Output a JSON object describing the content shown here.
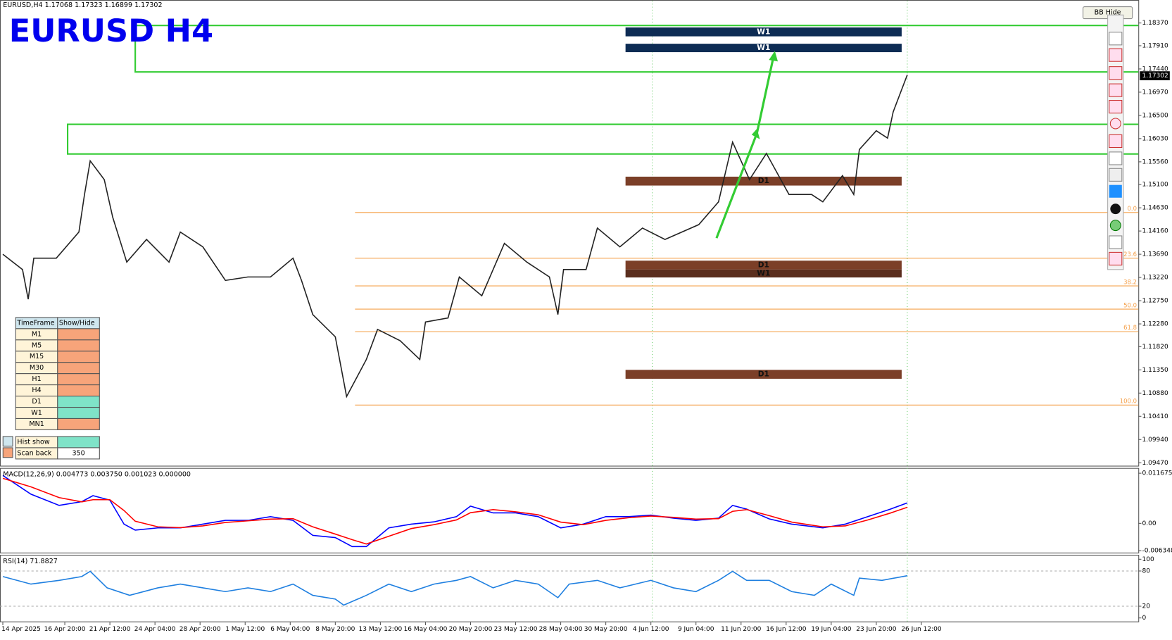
{
  "header": {
    "info": "EURUSD,H4  1.17068 1.17323 1.16899 1.17302",
    "symbol_title": "EURUSD  H4",
    "button": "BB Hide"
  },
  "chart_data": [
    {
      "type": "line",
      "color": "#222222",
      "x": [
        0,
        7,
        9,
        11,
        19,
        27,
        29,
        31,
        36,
        39,
        44,
        51,
        59,
        63,
        71,
        79,
        87,
        95,
        103,
        106,
        110,
        118,
        122,
        129,
        133,
        141,
        148,
        150,
        158,
        162,
        170,
        178,
        186,
        194,
        197,
        199,
        207,
        211,
        219,
        227,
        235,
        247,
        254,
        259,
        265,
        271,
        279,
        287,
        291,
        298,
        302,
        304,
        310,
        314,
        316,
        319,
        321
      ],
      "values": [
        1.1369,
        1.1338,
        1.1278,
        1.1361,
        1.1361,
        1.1414,
        1.149,
        1.1558,
        1.152,
        1.1444,
        1.1353,
        1.1399,
        1.1353,
        1.1414,
        1.1384,
        1.1316,
        1.1323,
        1.1323,
        1.1361,
        1.1316,
        1.1247,
        1.1202,
        1.1081,
        1.1156,
        1.1217,
        1.1194,
        1.1156,
        1.1232,
        1.124,
        1.1323,
        1.1285,
        1.1391,
        1.1353,
        1.1323,
        1.1247,
        1.1338,
        1.1338,
        1.1422,
        1.1384,
        1.1422,
        1.1399,
        1.1429,
        1.1475,
        1.1596,
        1.152,
        1.1573,
        1.149,
        1.149,
        1.1475,
        1.1528,
        1.149,
        1.1581,
        1.1619,
        1.1604,
        1.1657,
        1.1702,
        1.1732
      ],
      "xlim": [
        -1,
        403
      ],
      "ylim": [
        1.0941,
        1.1879
      ],
      "xticks": [
        {
          "value": 0,
          "label": "14 Apr 2025"
        },
        {
          "value": 22,
          "label": "16 Apr 20:00"
        },
        {
          "value": 38,
          "label": "21 Apr 12:00"
        },
        {
          "value": 54,
          "label": "24 Apr 04:00"
        },
        {
          "value": 70,
          "label": "28 Apr 20:00"
        },
        {
          "value": 86,
          "label": "1 May 12:00"
        },
        {
          "value": 102,
          "label": "6 May 04:00"
        },
        {
          "value": 118,
          "label": "8 May 20:00"
        },
        {
          "value": 134,
          "label": "13 May 12:00"
        },
        {
          "value": 150,
          "label": "16 May 04:00"
        },
        {
          "value": 166,
          "label": "20 May 20:00"
        },
        {
          "value": 182,
          "label": "23 May 12:00"
        },
        {
          "value": 198,
          "label": "28 May 04:00"
        },
        {
          "value": 214,
          "label": "30 May 20:00"
        },
        {
          "value": 230,
          "label": "4 Jun 12:00"
        },
        {
          "value": 246,
          "label": "9 Jun 04:00"
        },
        {
          "value": 262,
          "label": "11 Jun 20:00"
        },
        {
          "value": 278,
          "label": "16 Jun 12:00"
        },
        {
          "value": 294,
          "label": "19 Jun 04:00"
        },
        {
          "value": 310,
          "label": "23 Jun 20:00"
        },
        {
          "value": 326,
          "label": "26 Jun 12:00"
        }
      ],
      "yticks": [
        {
          "value": 1.1837,
          "label": "1.18370"
        },
        {
          "value": 1.1791,
          "label": "1.17910"
        },
        {
          "value": 1.1744,
          "label": "1.17440"
        },
        {
          "value": 1.1697,
          "label": "1.16970"
        },
        {
          "value": 1.165,
          "label": "1.16500"
        },
        {
          "value": 1.1603,
          "label": "1.16030"
        },
        {
          "value": 1.1556,
          "label": "1.15560"
        },
        {
          "value": 1.151,
          "label": "1.15100"
        },
        {
          "value": 1.1463,
          "label": "1.14630"
        },
        {
          "value": 1.1416,
          "label": "1.14160"
        },
        {
          "value": 1.1369,
          "label": "1.13690"
        },
        {
          "value": 1.1322,
          "label": "1.13220"
        },
        {
          "value": 1.1275,
          "label": "1.12750"
        },
        {
          "value": 1.1228,
          "label": "1.12280"
        },
        {
          "value": 1.1182,
          "label": "1.11820"
        },
        {
          "value": 1.1135,
          "label": "1.11350"
        },
        {
          "value": 1.1088,
          "label": "1.10880"
        },
        {
          "value": 1.1041,
          "label": "1.10410"
        },
        {
          "value": 1.0994,
          "label": "1.09940"
        },
        {
          "value": 1.0947,
          "label": "1.09470"
        }
      ],
      "current_price": {
        "value": 1.17302,
        "label": "1.17302"
      },
      "vlines": [
        230.5,
        321
      ],
      "zones": [
        {
          "label": "W1",
          "top": 1.1828,
          "bottom": 1.181,
          "x0": 221,
          "x1": 319,
          "color": "#0d2c54"
        },
        {
          "label": "W1",
          "top": 1.1795,
          "bottom": 1.1778,
          "x0": 221,
          "x1": 319,
          "color": "#0d2c54"
        },
        {
          "label": "D1",
          "top": 1.1526,
          "bottom": 1.1508,
          "x0": 221,
          "x1": 319,
          "color": "#7b3f28"
        },
        {
          "label": "D1",
          "top": 1.1356,
          "bottom": 1.1338,
          "x0": 221,
          "x1": 319,
          "color": "#7b3f28"
        },
        {
          "label": "W1",
          "top": 1.1338,
          "bottom": 1.1322,
          "x0": 221,
          "x1": 319,
          "color": "#5a2e1e"
        },
        {
          "label": "D1",
          "top": 1.1135,
          "bottom": 1.1117,
          "x0": 221,
          "x1": 319,
          "color": "#7b3f28"
        }
      ],
      "levels": [
        {
          "top": 1.1832,
          "bottom": 1.1738,
          "x0": 47,
          "color": "#33cc33"
        },
        {
          "top": 1.1632,
          "bottom": 1.1572,
          "x0": 23,
          "color": "#33cc33"
        }
      ],
      "fib": {
        "x0": 125,
        "color": "#f5a04a",
        "levels": [
          {
            "label": "0.0",
            "price": 1.14535
          },
          {
            "label": "23.6",
            "price": 1.1361
          },
          {
            "label": "38.2",
            "price": 1.13049
          },
          {
            "label": "50.0",
            "price": 1.12579
          },
          {
            "label": "61.8",
            "price": 1.12124
          },
          {
            "label": "100.0",
            "price": 1.10638
          }
        ]
      }
    },
    {
      "type": "line",
      "title": "MACD(12,26,9) 0.004773 0.003750 0.001023 0.000000",
      "x": [
        0,
        10,
        20,
        28,
        32,
        38,
        43,
        47,
        55,
        63,
        71,
        79,
        87,
        95,
        103,
        110,
        118,
        124,
        129,
        137,
        145,
        153,
        161,
        166,
        174,
        182,
        190,
        198,
        206,
        214,
        222,
        230,
        238,
        246,
        254,
        259,
        264,
        272,
        280,
        291,
        299,
        307,
        315,
        321
      ],
      "series": [
        {
          "color": "#0000ff",
          "values": [
            0.01116,
            0.0068,
            0.00418,
            0.00505,
            0.00645,
            0.0054,
            -0.00017,
            -0.00157,
            -0.00105,
            -0.00105,
            -0.00017,
            0.0007,
            0.0007,
            0.00157,
            0.0007,
            -0.00279,
            -0.00331,
            -0.0054,
            -0.0054,
            -0.00105,
            -0.00017,
            0.00035,
            0.00157,
            0.00401,
            0.00244,
            0.00244,
            0.00157,
            -0.00105,
            -0.00017,
            0.00157,
            0.00157,
            0.00192,
            0.00122,
            0.0007,
            0.00122,
            0.00418,
            0.00331,
            0.00105,
            -0.00017,
            -0.00105,
            -0.00017,
            0.00157,
            0.00331,
            0.00477
          ]
        },
        {
          "color": "#ff0000",
          "values": [
            0.0105,
            0.0085,
            0.006,
            0.005,
            0.0055,
            0.0055,
            0.003,
            0.0005,
            -0.0008,
            -0.001,
            -0.0006,
            0.0002,
            0.0006,
            0.001,
            0.0011,
            -0.0008,
            -0.0025,
            -0.0038,
            -0.0048,
            -0.003,
            -0.0012,
            -0.0003,
            0.0008,
            0.0025,
            0.0032,
            0.0027,
            0.002,
            0.0003,
            -0.0003,
            0.0007,
            0.0013,
            0.0017,
            0.0014,
            0.001,
            0.0011,
            0.0028,
            0.0032,
            0.0018,
            0.0003,
            -0.0008,
            -0.0006,
            0.0008,
            0.0024,
            0.00375
          ]
        }
      ],
      "xlim": [
        -1,
        403
      ],
      "ylim": [
        -0.0068,
        0.01255
      ],
      "yticks": [
        0.011675,
        {
          "value": 0,
          "label": "0.00"
        },
        -0.006348
      ]
    },
    {
      "type": "line",
      "title": "RSI(14) 71.8827",
      "color": "#1e7fe0",
      "x": [
        0,
        10,
        20,
        28,
        31,
        37,
        45,
        55,
        63,
        71,
        79,
        87,
        95,
        103,
        110,
        118,
        121,
        129,
        137,
        145,
        153,
        161,
        166,
        174,
        182,
        190,
        197,
        201,
        211,
        219,
        230,
        238,
        246,
        254,
        259,
        264,
        272,
        280,
        288,
        294,
        302,
        304,
        312,
        321
      ],
      "values": [
        70.5,
        57.7,
        64.1,
        70.5,
        79.5,
        51.3,
        38.5,
        51.3,
        57.7,
        51.3,
        44.9,
        51.3,
        44.9,
        57.7,
        38.5,
        32.1,
        21.8,
        38.5,
        57.7,
        44.9,
        57.7,
        64.1,
        70.5,
        51.3,
        64.1,
        57.7,
        34.6,
        57.7,
        64.1,
        51.3,
        64.1,
        51.3,
        44.9,
        64.1,
        79.5,
        64.1,
        64.1,
        44.9,
        38.5,
        57.7,
        38.5,
        67.9,
        64.1,
        71.9
      ],
      "xlim": [
        -1,
        403
      ],
      "ylim": [
        -6,
        105
      ],
      "yticks": [
        0,
        20,
        80,
        100
      ],
      "levels": [
        20,
        80
      ]
    }
  ],
  "timeframe_table": {
    "header": [
      "TimeFrame",
      "Show/Hide"
    ],
    "rows": [
      {
        "label": "M1",
        "color": "#f7a47a"
      },
      {
        "label": "M5",
        "color": "#f7a47a"
      },
      {
        "label": "M15",
        "color": "#f7a47a"
      },
      {
        "label": "M30",
        "color": "#f7a47a"
      },
      {
        "label": "H1",
        "color": "#f7a47a"
      },
      {
        "label": "H4",
        "color": "#f7a47a"
      },
      {
        "label": "D1",
        "color": "#7fe3c8"
      },
      {
        "label": "W1",
        "color": "#7fe3c8"
      },
      {
        "label": "MN1",
        "color": "#f7a47a"
      }
    ],
    "hist_show": "Hist show",
    "scan_back": {
      "label": "Scan back",
      "value": 350
    }
  }
}
